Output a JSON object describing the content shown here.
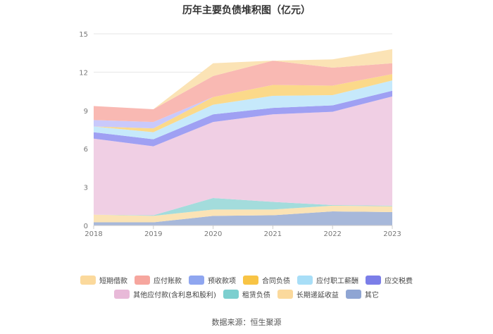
{
  "chart_data": {
    "type": "area",
    "stacked": true,
    "title": "历年主要负债堆积图（亿元）",
    "x": [
      "2018",
      "2019",
      "2020",
      "2021",
      "2022",
      "2023"
    ],
    "ylim": [
      0,
      15
    ],
    "yticks": [
      "0",
      "3",
      "6",
      "9",
      "12",
      "15"
    ],
    "grid": true,
    "legend_position": "bottom",
    "series": [
      {
        "name": "其它",
        "color": "#a7b8da",
        "values": [
          0.25,
          0.25,
          0.75,
          0.8,
          1.1,
          1.05
        ]
      },
      {
        "name": "长期递延收益",
        "color": "#fbe3b5",
        "values": [
          0.6,
          0.5,
          0.5,
          0.45,
          0.45,
          0.45
        ]
      },
      {
        "name": "租赁负债",
        "color": "#a3dcdc",
        "values": [
          0.0,
          0.05,
          0.9,
          0.6,
          0.05,
          0.05
        ]
      },
      {
        "name": "其他应付款(含利息和股利)",
        "color": "#f0cfe4",
        "values": [
          5.95,
          5.4,
          5.95,
          6.85,
          7.3,
          8.55
        ]
      },
      {
        "name": "应交税费",
        "color": "#9fa0f3",
        "values": [
          0.5,
          0.55,
          0.6,
          0.5,
          0.5,
          0.45
        ]
      },
      {
        "name": "应付职工薪酬",
        "color": "#c6e9fb",
        "values": [
          0.45,
          0.55,
          0.75,
          0.95,
          0.8,
          0.8
        ]
      },
      {
        "name": "合同负债",
        "color": "#fbd98a",
        "values": [
          0.0,
          0.3,
          0.6,
          0.85,
          0.75,
          0.5
        ]
      },
      {
        "name": "预收款项",
        "color": "#c9c9fb",
        "values": [
          0.5,
          0.5,
          0.0,
          0.0,
          0.0,
          0.0
        ]
      },
      {
        "name": "应付账款",
        "color": "#f9b9b3",
        "values": [
          1.1,
          1.0,
          1.65,
          1.9,
          1.4,
          0.85
        ]
      },
      {
        "name": "短期借款",
        "color": "#fbe3b5",
        "values": [
          0.0,
          0.0,
          1.0,
          0.0,
          0.65,
          1.1
        ]
      }
    ]
  },
  "legend_rows": [
    [
      {
        "label": "短期借款",
        "color": "#fbd99c"
      },
      {
        "label": "应付账款",
        "color": "#f6a69e"
      },
      {
        "label": "预收款项",
        "color": "#8fa6f0"
      },
      {
        "label": "合同负债",
        "color": "#f8c445"
      },
      {
        "label": "应付职工薪酬",
        "color": "#a8def7"
      },
      {
        "label": "应交税费",
        "color": "#7b7ee8"
      }
    ],
    [
      {
        "label": "其他应付款(含利息和股利)",
        "color": "#e8b9d8"
      },
      {
        "label": "租赁负债",
        "color": "#7ccfcf"
      },
      {
        "label": "长期递延收益",
        "color": "#fbd99c"
      },
      {
        "label": "其它",
        "color": "#8fa5d3"
      }
    ]
  ],
  "source": "数据来源：恒生聚源"
}
